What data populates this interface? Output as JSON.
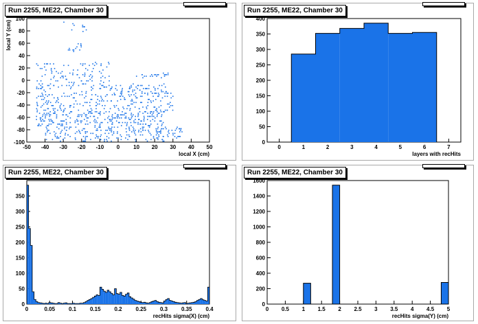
{
  "colors": {
    "fill": "#1a73e8",
    "marker": "#1a73e8",
    "axis": "#000000",
    "frame": "#a8a8a8"
  },
  "chart_data": [
    {
      "type": "scatter",
      "title": "Run 2255, ME22, Chamber 30",
      "xlabel": "local X (cm)",
      "ylabel": "local Y (cm)",
      "xlim": [
        -50,
        50
      ],
      "ylim": [
        -100,
        100
      ],
      "xticks": [
        "-50",
        "-40",
        "-30",
        "-20",
        "-10",
        "0",
        "10",
        "20",
        "30",
        "40",
        "50"
      ],
      "yticks": [
        "-100",
        "-80",
        "-60",
        "-40",
        "-20",
        "0",
        "20",
        "40",
        "60",
        "80",
        "100"
      ],
      "clusters": [
        {
          "x": [
            -30,
            -15
          ],
          "y": [
            80,
            95
          ],
          "n": 10
        },
        {
          "x": [
            -28,
            -20
          ],
          "y": [
            45,
            62
          ],
          "n": 14
        },
        {
          "x": [
            -45,
            -5
          ],
          "y": [
            -10,
            30
          ],
          "n": 110
        },
        {
          "x": [
            5,
            28
          ],
          "y": [
            5,
            12
          ],
          "n": 22
        },
        {
          "x": [
            -45,
            30
          ],
          "y": [
            -50,
            -5
          ],
          "n": 320
        },
        {
          "x": [
            -45,
            25
          ],
          "y": [
            -75,
            -50
          ],
          "n": 260
        },
        {
          "x": [
            -40,
            35
          ],
          "y": [
            -98,
            -75
          ],
          "n": 200
        }
      ]
    },
    {
      "type": "bar",
      "title": "Run 2255, ME22, Chamber 30",
      "xlabel": "layers with recHits",
      "ylabel": "",
      "xlim": [
        -0.5,
        7.5
      ],
      "ylim": [
        0,
        400
      ],
      "xticks": [
        "0",
        "1",
        "2",
        "3",
        "4",
        "5",
        "6",
        "7"
      ],
      "yticks": [
        "0",
        "50",
        "100",
        "150",
        "200",
        "250",
        "300",
        "350",
        "400"
      ],
      "categories": [
        "1",
        "2",
        "3",
        "4",
        "5",
        "6"
      ],
      "values": [
        285,
        352,
        368,
        385,
        352,
        355
      ]
    },
    {
      "type": "bar",
      "title": "Run 2255, ME22, Chamber 30",
      "xlabel": "recHits sigma(X) (cm)",
      "ylabel": "",
      "xlim": [
        0,
        0.4
      ],
      "ylim": [
        0,
        400
      ],
      "xticks": [
        "0",
        "0.05",
        "0.1",
        "0.15",
        "0.2",
        "0.25",
        "0.3",
        "0.35",
        "0.4"
      ],
      "yticks": [
        "0",
        "50",
        "100",
        "150",
        "200",
        "250",
        "300",
        "350"
      ],
      "bin_width": 0.004,
      "values": [
        385,
        245,
        190,
        40,
        15,
        8,
        5,
        4,
        3,
        2,
        3,
        2,
        5,
        4,
        3,
        2,
        2,
        5,
        3,
        2,
        3,
        4,
        2,
        2,
        2,
        3,
        2,
        2,
        2,
        3,
        3,
        5,
        8,
        12,
        15,
        18,
        22,
        26,
        30,
        28,
        55,
        48,
        42,
        38,
        45,
        40,
        35,
        30,
        50,
        34,
        32,
        38,
        28,
        26,
        32,
        36,
        24,
        20,
        16,
        12,
        10,
        8,
        6,
        5,
        6,
        4,
        3,
        5,
        8,
        10,
        12,
        8,
        6,
        5,
        4,
        10,
        15,
        18,
        12,
        10,
        8,
        6,
        5,
        4,
        3,
        4,
        5,
        2,
        3,
        4,
        5,
        6,
        8,
        12,
        15,
        18,
        14,
        12,
        10,
        55
      ]
    },
    {
      "type": "bar",
      "title": "Run 2255, ME22, Chamber 30",
      "xlabel": "recHits sigma(Y) (cm)",
      "ylabel": "",
      "xlim": [
        0,
        5
      ],
      "ylim": [
        0,
        1600
      ],
      "xticks": [
        "0",
        "0.5",
        "1",
        "1.5",
        "2",
        "2.5",
        "3",
        "3.5",
        "4",
        "4.5",
        "5"
      ],
      "yticks": [
        "0",
        "200",
        "400",
        "600",
        "800",
        "1000",
        "1200",
        "1400",
        "1600"
      ],
      "bin_width": 0.2,
      "bins": [
        [
          1.0,
          270
        ],
        [
          1.8,
          1540
        ],
        [
          4.8,
          280
        ]
      ]
    }
  ]
}
